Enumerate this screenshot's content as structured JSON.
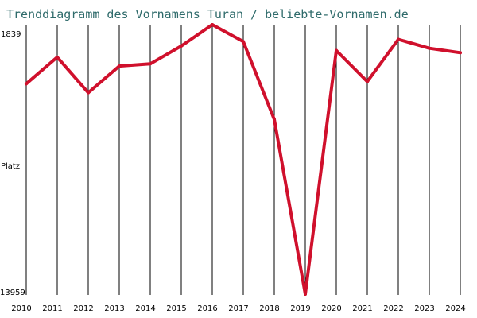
{
  "chart_data": {
    "type": "line",
    "title": "Trenddiagramm des Vornamens Turan / beliebte-Vornamen.de",
    "ylabel": "Platz",
    "y_axis_inverted": true,
    "y_tick_labels": [
      "1839",
      "13959"
    ],
    "ylim": [
      1839,
      13959
    ],
    "x": [
      "2010",
      "2011",
      "2012",
      "2013",
      "2014",
      "2015",
      "2016",
      "2017",
      "2018",
      "2019",
      "2020",
      "2021",
      "2022",
      "2023",
      "2024"
    ],
    "series": [
      {
        "values": [
          4500,
          3300,
          4900,
          3700,
          3600,
          2800,
          1839,
          2600,
          6100,
          13959,
          3000,
          4400,
          2500,
          2900,
          3100
        ]
      }
    ],
    "grid": "vertical",
    "colors": {
      "line": "#d0102c",
      "title": "#2f6b6b",
      "gridline": "#000000"
    }
  }
}
